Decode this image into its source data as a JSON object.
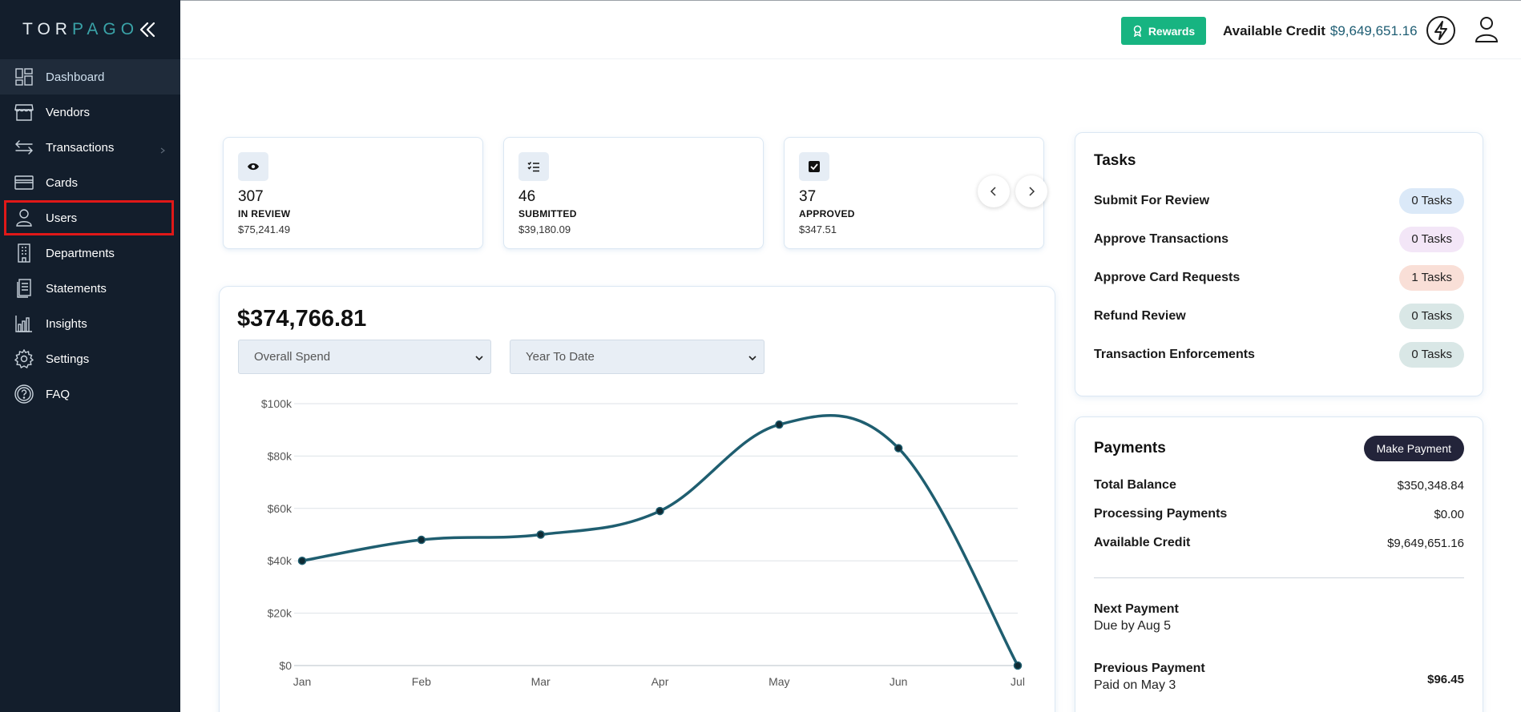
{
  "brand": {
    "logo_prefix": "TOR",
    "logo_accent": "PAGO"
  },
  "sidebar": {
    "items": [
      {
        "label": "Dashboard",
        "icon": "dashboard-icon"
      },
      {
        "label": "Vendors",
        "icon": "store-icon"
      },
      {
        "label": "Transactions",
        "icon": "transfer-icon"
      },
      {
        "label": "Cards",
        "icon": "card-icon"
      },
      {
        "label": "Users",
        "icon": "user-icon"
      },
      {
        "label": "Departments",
        "icon": "building-icon"
      },
      {
        "label": "Statements",
        "icon": "document-icon"
      },
      {
        "label": "Insights",
        "icon": "bar-chart-icon"
      },
      {
        "label": "Settings",
        "icon": "gear-icon"
      },
      {
        "label": "FAQ",
        "icon": "help-icon"
      }
    ]
  },
  "header": {
    "rewards_label": "Rewards",
    "credit_label": "Available Credit",
    "credit_value": "$9,649,651.16"
  },
  "stats": [
    {
      "count": "307",
      "label": "IN REVIEW",
      "amount": "$75,241.49",
      "icon": "eye-icon"
    },
    {
      "count": "46",
      "label": "SUBMITTED",
      "amount": "$39,180.09",
      "icon": "checklist-icon"
    },
    {
      "count": "37",
      "label": "APPROVED",
      "amount": "$347.51",
      "icon": "checkbox-icon"
    }
  ],
  "spend": {
    "total": "$374,766.81",
    "metric_select": "Overall Spend",
    "period_select": "Year To Date"
  },
  "chart_data": {
    "type": "line",
    "categories": [
      "Jan",
      "Feb",
      "Mar",
      "Apr",
      "May",
      "Jun",
      "Jul"
    ],
    "series": [
      {
        "values": [
          40000,
          48000,
          50000,
          59000,
          92000,
          83000,
          0
        ]
      }
    ],
    "y_ticks": [
      "$0",
      "$20k",
      "$40k",
      "$60k",
      "$80k",
      "$100k"
    ],
    "ylim": [
      0,
      100000
    ],
    "grid": true,
    "line_color": "#1f5e70"
  },
  "tasks": {
    "title": "Tasks",
    "rows": [
      {
        "label": "Submit For Review",
        "badge": "0 Tasks",
        "color": "#dbe9f8"
      },
      {
        "label": "Approve Transactions",
        "badge": "0 Tasks",
        "color": "#f3e6f7"
      },
      {
        "label": "Approve Card Requests",
        "badge": "1 Tasks",
        "color": "#f9dfd7"
      },
      {
        "label": "Refund Review",
        "badge": "0 Tasks",
        "color": "#d9e7e6"
      },
      {
        "label": "Transaction Enforcements",
        "badge": "0 Tasks",
        "color": "#d9e7e6"
      }
    ]
  },
  "payments": {
    "title": "Payments",
    "make_payment_label": "Make Payment",
    "total_balance_label": "Total Balance",
    "total_balance": "$350,348.84",
    "processing_label": "Processing Payments",
    "processing": "$0.00",
    "available_credit_label": "Available Credit",
    "available_credit": "$9,649,651.16",
    "next_label": "Next Payment",
    "next_due": "Due by Aug 5",
    "previous_label": "Previous Payment",
    "previous_date": "Paid on May 3",
    "previous_amount": "$96.45"
  },
  "colors": {
    "sidebar_bg": "#131e2c",
    "accent": "#17b481",
    "highlight": "#e01818",
    "brand_teal": "#1e5d73"
  }
}
